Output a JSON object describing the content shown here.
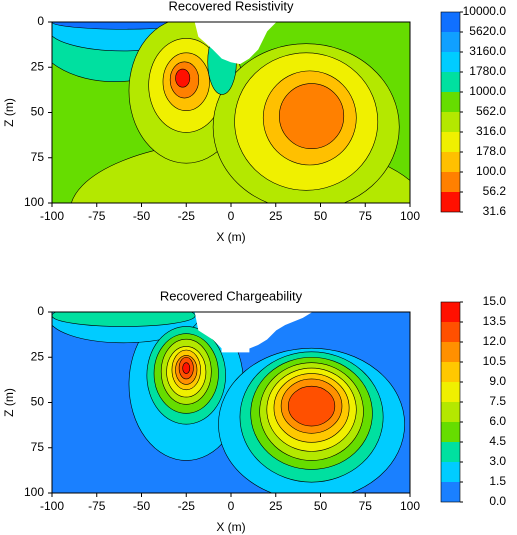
{
  "chart_data": [
    {
      "type": "contour",
      "title": "Recovered Resistivity",
      "xlabel": "X (m)",
      "ylabel": "Z (m)",
      "xlim": [
        -100,
        100
      ],
      "ylim": [
        100,
        0
      ],
      "xticks": [
        -100,
        -75,
        -50,
        -25,
        0,
        25,
        50,
        75,
        100
      ],
      "yticks": [
        0,
        25,
        50,
        75,
        100
      ],
      "colorbar": {
        "levels": [
          {
            "value": 10000,
            "label": "10000.0"
          },
          {
            "value": 5620,
            "label": "5620.0"
          },
          {
            "value": 3160,
            "label": "3160.0"
          },
          {
            "value": 1780,
            "label": "1780.0"
          },
          {
            "value": 1000,
            "label": "1000.0"
          },
          {
            "value": 562,
            "label": "562.0"
          },
          {
            "value": 316,
            "label": "316.0"
          },
          {
            "value": 178,
            "label": "178.0"
          },
          {
            "value": 100,
            "label": "100.0"
          },
          {
            "value": 56.2,
            "label": "56.2"
          },
          {
            "value": 31.6,
            "label": "31.6"
          }
        ],
        "colors": [
          "#1070ff",
          "#10a0ff",
          "#00ccff",
          "#00e0a0",
          "#66dd00",
          "#b4e800",
          "#f0f000",
          "#ffc000",
          "#ff8000",
          "#ff1000"
        ]
      }
    },
    {
      "type": "contour",
      "title": "Recovered Chargeability",
      "xlabel": "X (m)",
      "ylabel": "Z (m)",
      "xlim": [
        -100,
        100
      ],
      "ylim": [
        100,
        0
      ],
      "xticks": [
        -100,
        -75,
        -50,
        -25,
        0,
        25,
        50,
        75,
        100
      ],
      "yticks": [
        0,
        25,
        50,
        75,
        100
      ],
      "colorbar": {
        "levels": [
          {
            "value": 15,
            "label": "15.0"
          },
          {
            "value": 13.5,
            "label": "13.5"
          },
          {
            "value": 12,
            "label": "12.0"
          },
          {
            "value": 10.5,
            "label": "10.5"
          },
          {
            "value": 9,
            "label": "9.0"
          },
          {
            "value": 7.5,
            "label": "7.5"
          },
          {
            "value": 6,
            "label": "6.0"
          },
          {
            "value": 4.5,
            "label": "4.5"
          },
          {
            "value": 3,
            "label": "3.0"
          },
          {
            "value": 1.5,
            "label": "1.5"
          },
          {
            "value": 0,
            "label": "0.0"
          }
        ],
        "colors": [
          "#ff1000",
          "#ff5000",
          "#ff9000",
          "#ffc800",
          "#f0f000",
          "#b4e800",
          "#66dd00",
          "#00e0a0",
          "#00ccff",
          "#1a80ff"
        ]
      }
    }
  ]
}
